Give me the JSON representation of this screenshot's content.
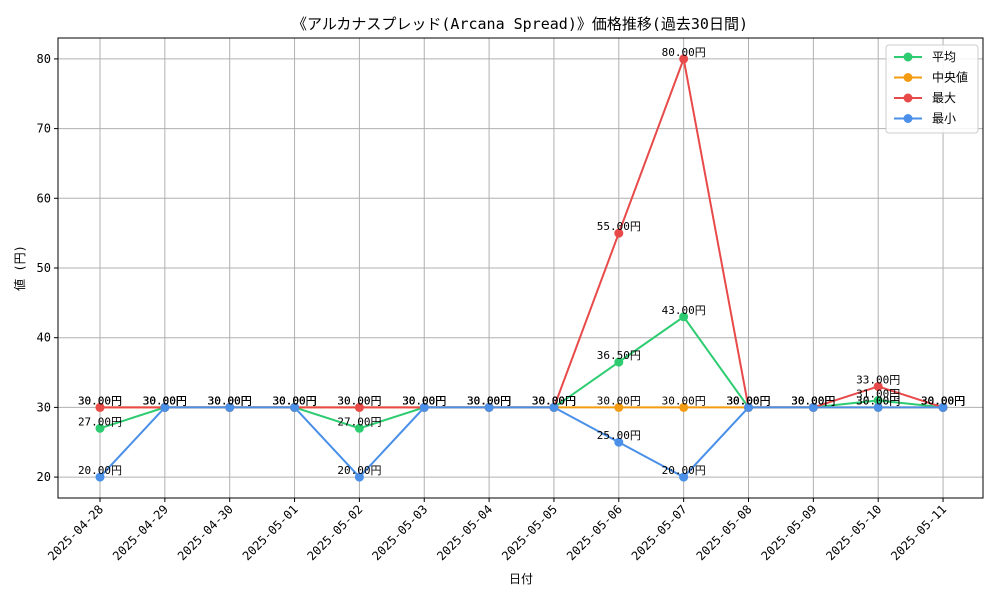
{
  "chart_data": {
    "type": "line",
    "title": "《アルカナスプレッド(Arcana Spread)》価格推移(過去30日間)",
    "xlabel": "日付",
    "ylabel": "値 (円)",
    "ylim": [
      17,
      83
    ],
    "yticks": [
      20,
      30,
      40,
      50,
      60,
      70,
      80
    ],
    "grid": true,
    "legend_position": "top-right",
    "value_suffix": "円",
    "categories": [
      "2025-04-28",
      "2025-04-29",
      "2025-04-30",
      "2025-05-01",
      "2025-05-02",
      "2025-05-03",
      "2025-05-04",
      "2025-05-05",
      "2025-05-06",
      "2025-05-07",
      "2025-05-08",
      "2025-05-09",
      "2025-05-10",
      "2025-05-11"
    ],
    "series": [
      {
        "name": "平均",
        "color": "#2ecc71",
        "values": [
          27,
          30,
          30,
          30,
          27,
          30,
          30,
          30,
          36.5,
          43,
          30,
          30,
          31,
          30
        ]
      },
      {
        "name": "中央値",
        "color": "#f39c12",
        "values": [
          30,
          30,
          30,
          30,
          30,
          30,
          30,
          30,
          30,
          30,
          30,
          30,
          30,
          30
        ]
      },
      {
        "name": "最大",
        "color": "#e84a4a",
        "values": [
          30,
          30,
          30,
          30,
          30,
          30,
          30,
          30,
          55,
          80,
          30,
          30,
          33,
          30
        ]
      },
      {
        "name": "最小",
        "color": "#4a90e8",
        "values": [
          20,
          30,
          30,
          30,
          20,
          30,
          30,
          30,
          25,
          20,
          30,
          30,
          30,
          30
        ]
      }
    ]
  }
}
